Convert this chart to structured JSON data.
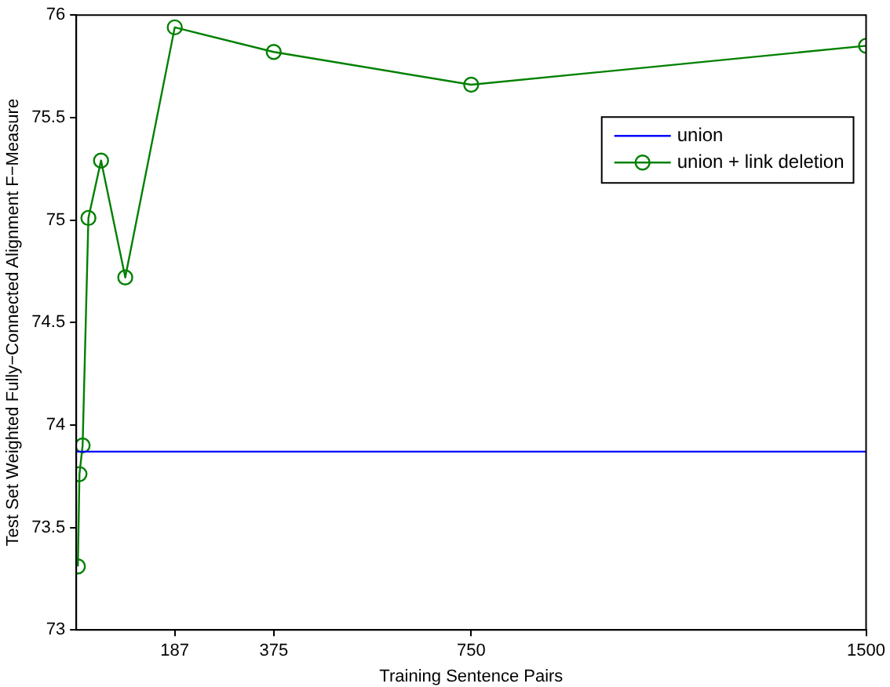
{
  "chart_data": {
    "type": "line",
    "xlabel": "Training Sentence Pairs",
    "ylabel": "Test Set Weighted Fully−Connected Alignment F−Measure",
    "xlim": [
      0,
      1500
    ],
    "xticks": [
      187,
      375,
      750,
      1500
    ],
    "ylim": [
      73,
      76
    ],
    "yticks": [
      73,
      73.5,
      74,
      74.5,
      75,
      75.5,
      76
    ],
    "grid": false,
    "legend": "top right",
    "series": [
      {
        "name": "union",
        "color": "#0000ff",
        "x": [
          0,
          1500
        ],
        "values": [
          73.87,
          73.87
        ],
        "marker": "none"
      },
      {
        "name": "union + link deletion",
        "color": "#008000",
        "x": [
          3,
          6,
          12,
          23,
          47,
          93,
          187,
          375,
          750,
          1500
        ],
        "values": [
          73.31,
          73.76,
          73.9,
          75.01,
          75.29,
          74.72,
          75.94,
          75.82,
          75.66,
          75.85
        ],
        "marker": "circle"
      }
    ]
  }
}
